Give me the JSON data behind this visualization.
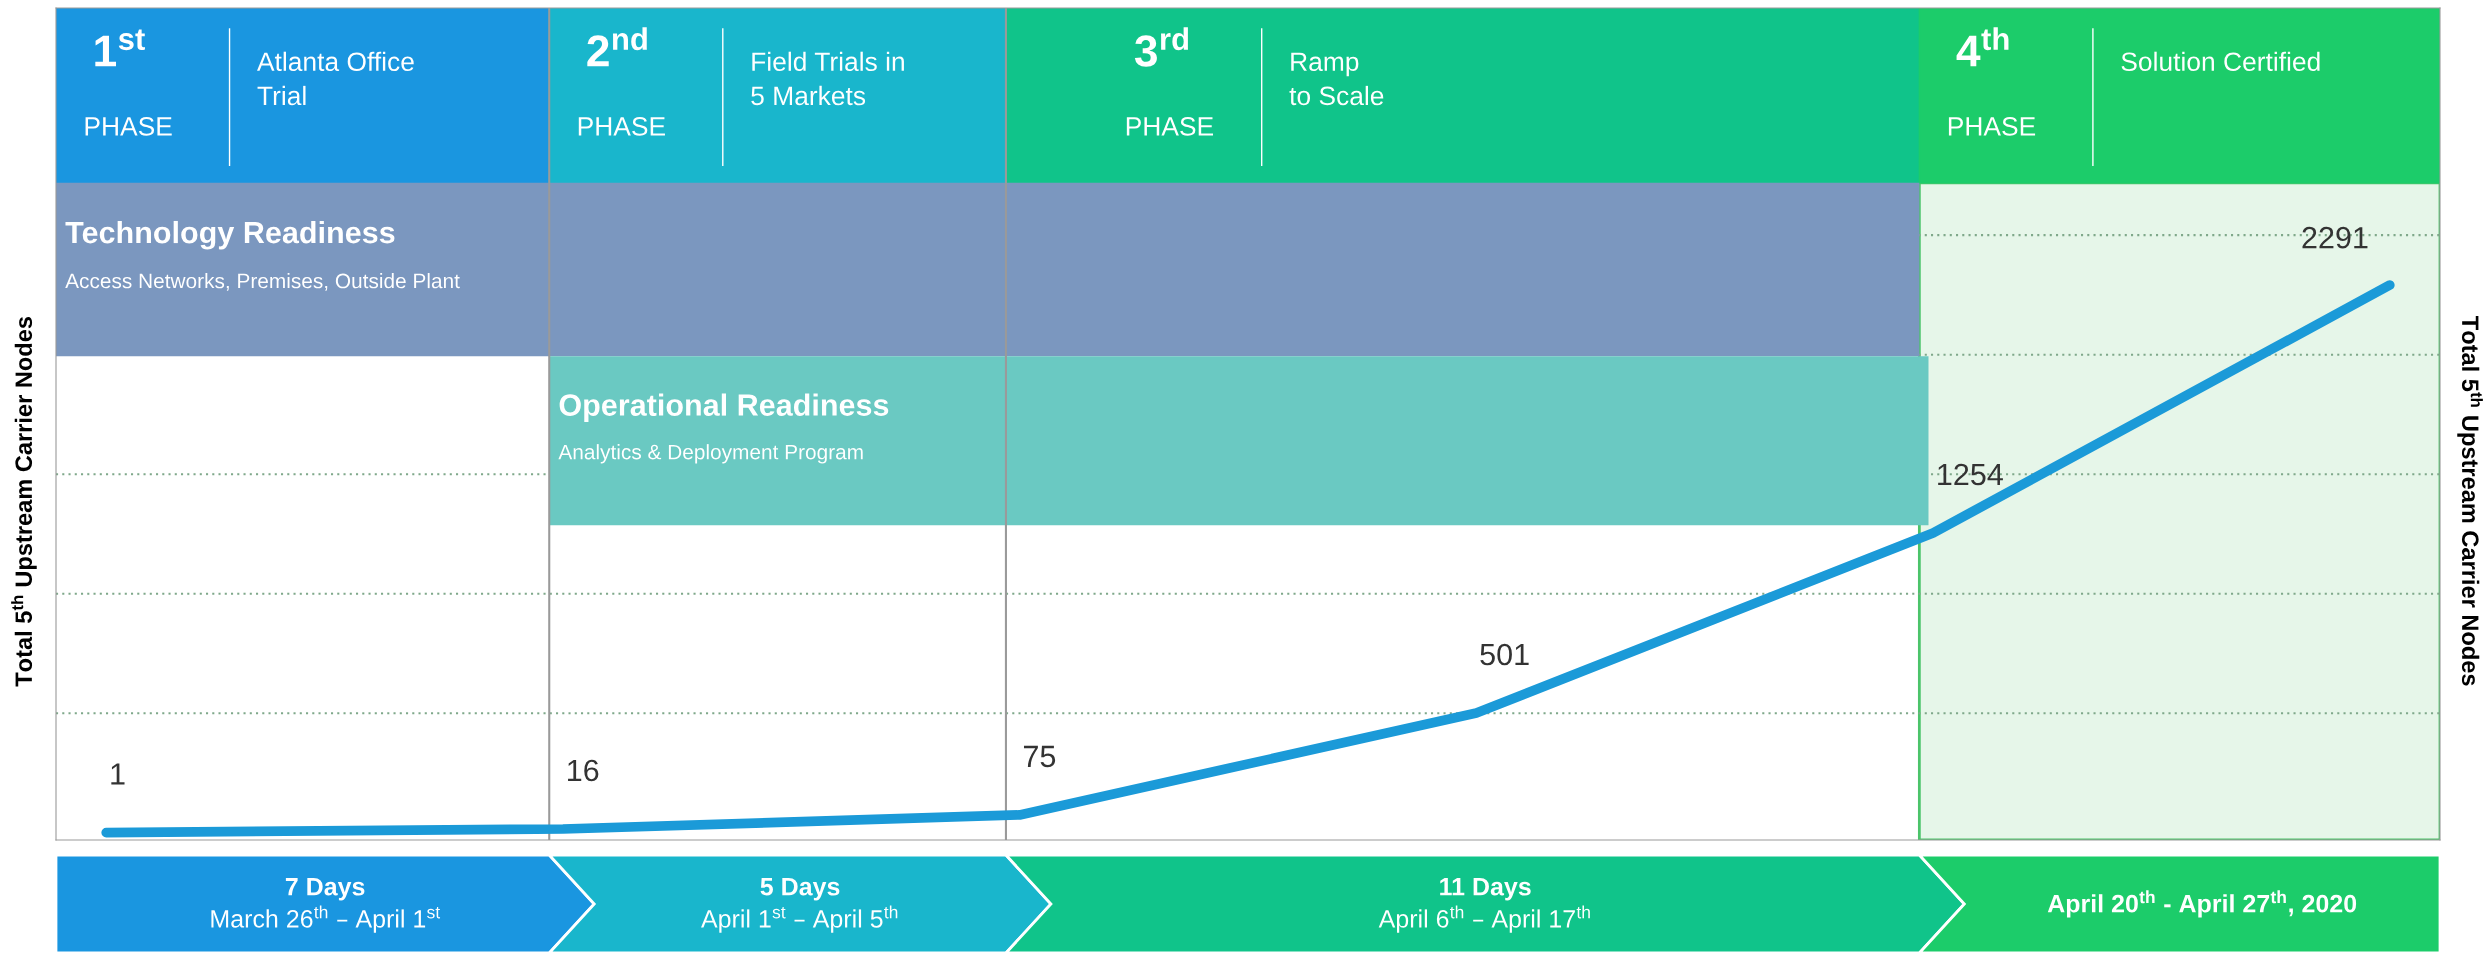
{
  "chart_data": {
    "type": "line",
    "ylabel": "Total 5$^{th}$ Upstream Carrier Nodes",
    "y2label": "Total 5$^{th}$ Upstream Carrier Nodes",
    "categories": [
      null,
      null,
      null,
      null,
      null,
      null
    ],
    "series": [
      {
        "color": "#1b9ad8",
        "values": [
          1,
          16,
          75,
          501,
          1254,
          2291
        ]
      }
    ],
    "data_labels": true,
    "ylim": [
      -30,
      3450
    ],
    "yticks": [
      {
        "value": 500,
        "label": null
      },
      {
        "value": 1000,
        "label": null
      },
      {
        "value": 1500,
        "label": null
      },
      {
        "value": 2000,
        "label": null
      },
      {
        "value": 2500,
        "label": null
      }
    ],
    "grid": "y",
    "marker": "none",
    "line_style": "solid",
    "bands": [
      {
        "axis": "y",
        "from": 1993,
        "to": 2719,
        "label": "Technology Readiness",
        "color": "#7b97bf"
      },
      {
        "axis": "y",
        "from": 1287,
        "to": 1993,
        "label": "Operational Readiness",
        "color": "#6ac9c2"
      }
    ],
    "annotations": [
      "1$^{st}$",
      "PHASE",
      "Atlanta Office\nTrial",
      "2$^{nd}$",
      "PHASE",
      "Field Trials in\n5 Markets",
      "3$^{rd}$",
      "PHASE",
      "Ramp\nto Scale",
      "4$^{th}$",
      "PHASE",
      "Solution Certified",
      "Access Networks, Premises, Outside Plant",
      "Analytics & Deployment Program",
      "7 Days",
      "March 26$^{th}$ – April 1$^{st}$",
      "5 Days",
      "April 1$^{st}$ – April 5$^{th}$",
      "11 Days",
      "April 6$^{th}$ – April 17$^{th}$",
      "April 20$^{th}$ - April 27$^{th}$, 2020"
    ]
  }
}
